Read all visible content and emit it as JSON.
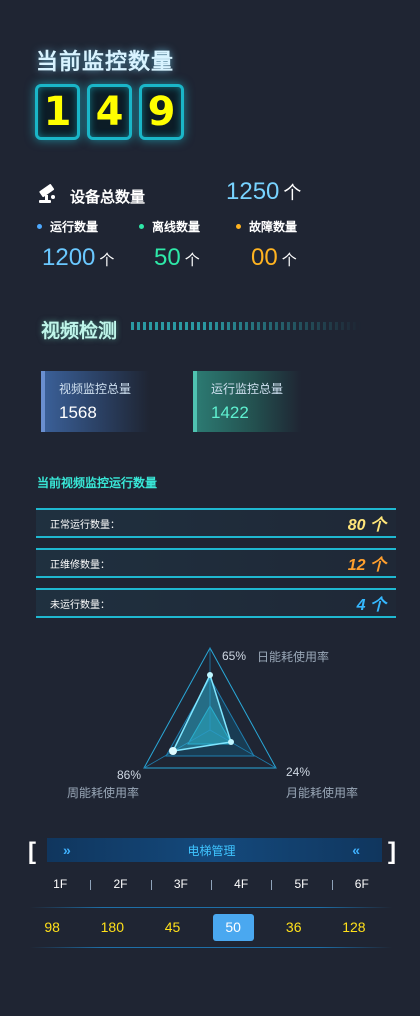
{
  "monitor": {
    "title": "当前监控数量",
    "digits": [
      "1",
      "4",
      "9"
    ]
  },
  "devices": {
    "icon": "camera-icon",
    "label": "设备总数量",
    "total": "1250",
    "total_unit": "个",
    "stats": [
      {
        "label": "运行数量",
        "value": "1200",
        "unit": "个",
        "color": "#6ac8ff"
      },
      {
        "label": "离线数量",
        "value": "50",
        "unit": "个",
        "color": "#2ee8a8"
      },
      {
        "label": "故障数量",
        "value": "00",
        "unit": "个",
        "color": "#ffb320"
      }
    ]
  },
  "video": {
    "title": "视频检测",
    "cards": [
      {
        "label": "视频监控总量",
        "value": "1568"
      },
      {
        "label": "运行监控总量",
        "value": "1422"
      }
    ]
  },
  "running": {
    "title": "当前视频监控运行数量",
    "rows": [
      {
        "label": "正常运行数量：",
        "value": "80 个",
        "color": "#ffe67a"
      },
      {
        "label": "正维修数量：",
        "value": "12 个",
        "color": "#ff9f2e"
      },
      {
        "label": "未运行数量：",
        "value": "4 个",
        "color": "#35b8ff"
      }
    ]
  },
  "radar": {
    "items": [
      {
        "name": "日能耗使用率",
        "value": "65%"
      },
      {
        "name": "月能耗使用率",
        "value": "24%"
      },
      {
        "name": "周能耗使用率",
        "value": "86%"
      }
    ]
  },
  "elevator": {
    "title": "电梯管理",
    "left_chevron": "»",
    "right_chevron": "«",
    "bracket_left": "[",
    "bracket_right": "]",
    "floors": [
      "1F",
      "2F",
      "3F",
      "4F",
      "5F",
      "6F"
    ],
    "values": [
      "98",
      "180",
      "45",
      "50",
      "36",
      "128"
    ],
    "selected_index": 3
  }
}
